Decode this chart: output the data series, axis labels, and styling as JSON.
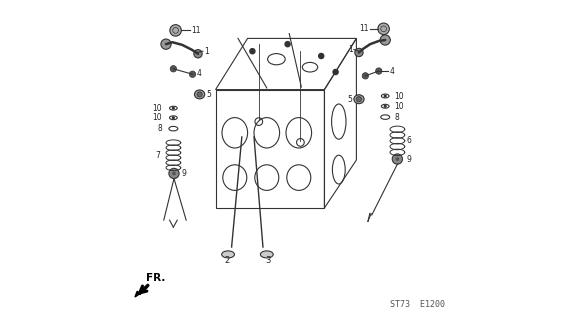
{
  "bg_color": "#ffffff",
  "line_color": "#333333",
  "text_color": "#222222",
  "footer_code": "ST73  E1200",
  "fr_label": "FR."
}
